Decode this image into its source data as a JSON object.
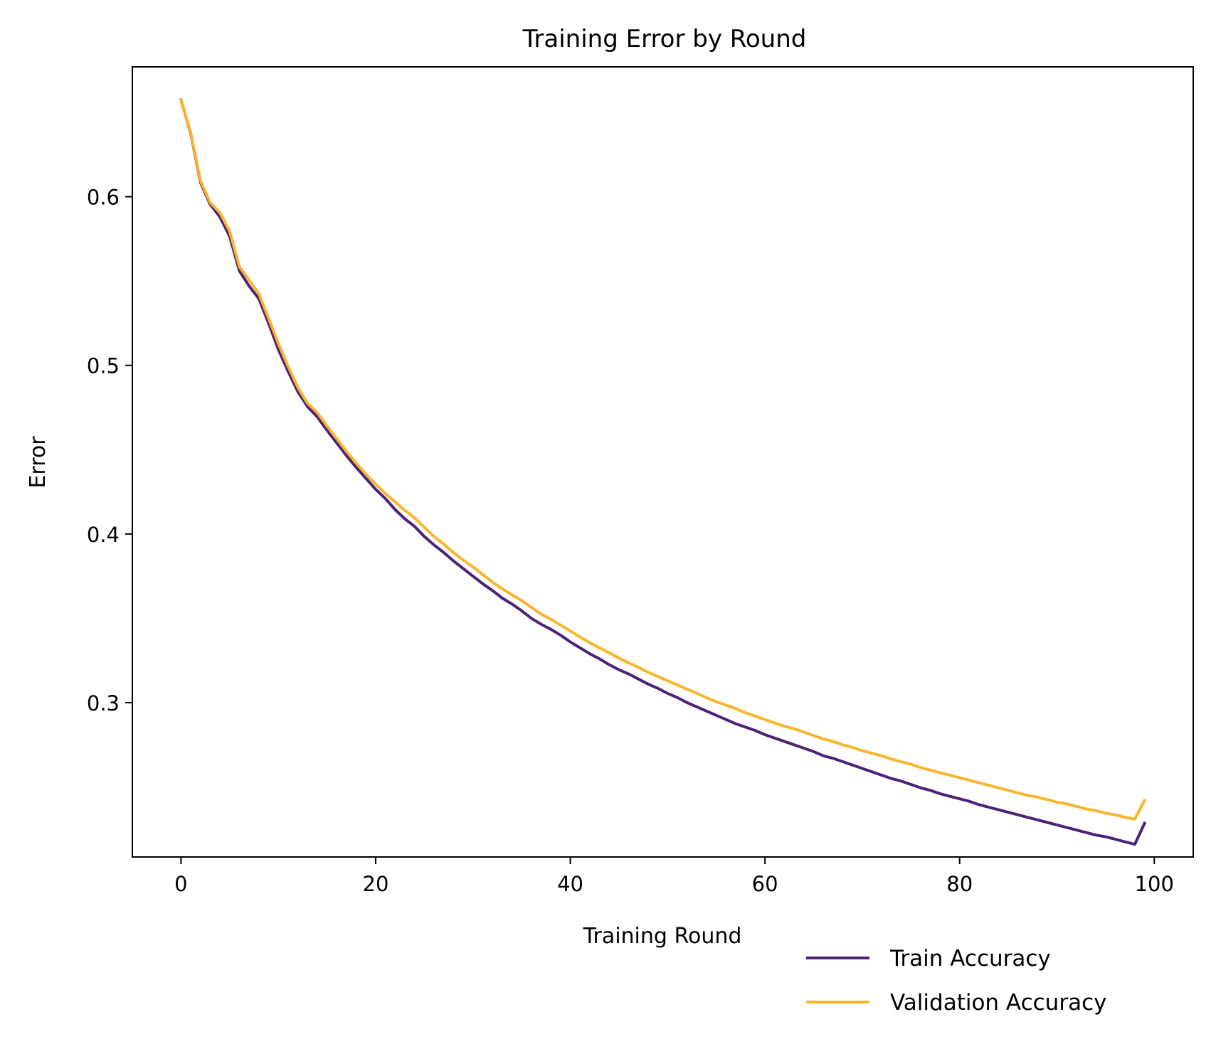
{
  "chart_data": {
    "type": "line",
    "title": "Training Error by Round",
    "xlabel": "Training Round",
    "ylabel": "Error",
    "xlim": [
      -5,
      104
    ],
    "ylim": [
      0.2085,
      0.677
    ],
    "x_ticks": [
      0,
      20,
      40,
      60,
      80,
      100
    ],
    "y_ticks": [
      0.3,
      0.4,
      0.5,
      0.6
    ],
    "x_tick_labels": [
      "0",
      "20",
      "40",
      "60",
      "80",
      "100"
    ],
    "y_tick_labels": [
      "0.3",
      "0.4",
      "0.5",
      "0.6"
    ],
    "grid": false,
    "legend_position": "bottom-right, outside below plot",
    "x": [
      0,
      1,
      2,
      3,
      4,
      5,
      6,
      7,
      8,
      9,
      10,
      11,
      12,
      13,
      14,
      15,
      16,
      17,
      18,
      19,
      20,
      21,
      22,
      23,
      24,
      25,
      26,
      27,
      28,
      29,
      30,
      31,
      32,
      33,
      34,
      35,
      36,
      37,
      38,
      39,
      40,
      41,
      42,
      43,
      44,
      45,
      46,
      47,
      48,
      49,
      50,
      51,
      52,
      53,
      54,
      55,
      56,
      57,
      58,
      59,
      60,
      61,
      62,
      63,
      64,
      65,
      66,
      67,
      68,
      69,
      70,
      71,
      72,
      73,
      74,
      75,
      76,
      77,
      78,
      79,
      80,
      81,
      82,
      83,
      84,
      85,
      86,
      87,
      88,
      89,
      90,
      91,
      92,
      93,
      94,
      95,
      96,
      97,
      98,
      99
    ],
    "series": [
      {
        "name": "Train Accuracy",
        "color": "#4a2379",
        "values": [
          0.6575,
          0.6375,
          0.6085,
          0.5955,
          0.588,
          0.5765,
          0.556,
          0.547,
          0.5395,
          0.525,
          0.5095,
          0.4965,
          0.4845,
          0.4755,
          0.4695,
          0.4615,
          0.454,
          0.4465,
          0.4395,
          0.433,
          0.4265,
          0.421,
          0.4145,
          0.409,
          0.4045,
          0.3985,
          0.3935,
          0.389,
          0.384,
          0.3795,
          0.375,
          0.3705,
          0.3665,
          0.362,
          0.3585,
          0.3545,
          0.35,
          0.3465,
          0.3435,
          0.34,
          0.336,
          0.3325,
          0.329,
          0.326,
          0.3225,
          0.3195,
          0.317,
          0.314,
          0.311,
          0.3085,
          0.3055,
          0.303,
          0.3,
          0.2975,
          0.295,
          0.2925,
          0.29,
          0.2875,
          0.2855,
          0.2835,
          0.281,
          0.279,
          0.277,
          0.275,
          0.273,
          0.271,
          0.2685,
          0.267,
          0.265,
          0.263,
          0.261,
          0.259,
          0.257,
          0.255,
          0.2535,
          0.2515,
          0.2495,
          0.248,
          0.246,
          0.2445,
          0.243,
          0.2415,
          0.2395,
          0.238,
          0.2365,
          0.235,
          0.2335,
          0.232,
          0.2305,
          0.229,
          0.2275,
          0.226,
          0.2245,
          0.223,
          0.2215,
          0.2205,
          0.219,
          0.2175,
          0.216,
          0.2285
        ]
      },
      {
        "name": "Validation Accuracy",
        "color": "#fbb52c",
        "values": [
          0.6575,
          0.638,
          0.6095,
          0.5965,
          0.5905,
          0.5795,
          0.5585,
          0.5505,
          0.5425,
          0.528,
          0.513,
          0.4995,
          0.487,
          0.4775,
          0.472,
          0.464,
          0.4565,
          0.449,
          0.442,
          0.4355,
          0.4295,
          0.424,
          0.419,
          0.414,
          0.4095,
          0.404,
          0.3985,
          0.394,
          0.389,
          0.3845,
          0.3805,
          0.376,
          0.3715,
          0.3675,
          0.364,
          0.3605,
          0.3565,
          0.3525,
          0.3495,
          0.346,
          0.3425,
          0.339,
          0.3355,
          0.3325,
          0.3295,
          0.3265,
          0.3235,
          0.321,
          0.318,
          0.3155,
          0.313,
          0.3105,
          0.308,
          0.3055,
          0.303,
          0.3005,
          0.2985,
          0.2965,
          0.294,
          0.292,
          0.29,
          0.288,
          0.286,
          0.2845,
          0.2825,
          0.2805,
          0.2785,
          0.277,
          0.275,
          0.2735,
          0.2715,
          0.27,
          0.2685,
          0.2665,
          0.265,
          0.2635,
          0.2615,
          0.26,
          0.2585,
          0.257,
          0.2555,
          0.254,
          0.2525,
          0.251,
          0.2495,
          0.248,
          0.2465,
          0.245,
          0.244,
          0.2425,
          0.241,
          0.24,
          0.2385,
          0.237,
          0.236,
          0.2345,
          0.2335,
          0.232,
          0.231,
          0.242
        ]
      }
    ]
  }
}
